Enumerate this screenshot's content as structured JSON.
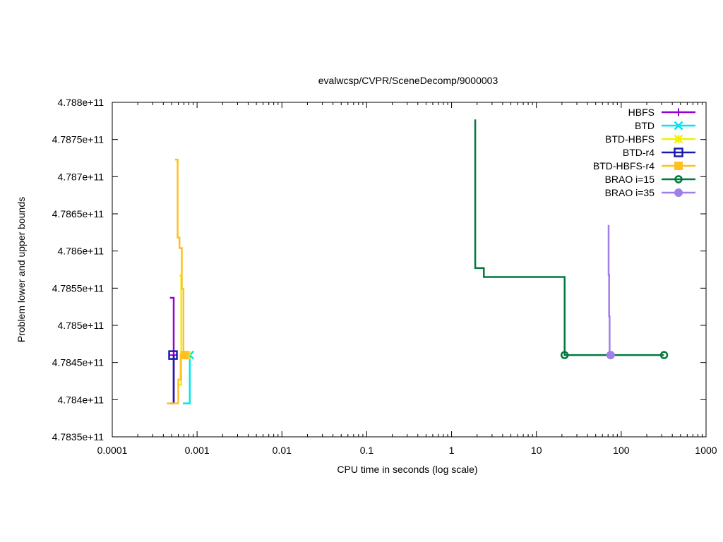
{
  "chart_data": {
    "type": "line",
    "title": "evalwcsp/CVPR/SceneDecomp/9000003",
    "xlabel": "CPU time in seconds (log scale)",
    "ylabel": "Problem lower and upper bounds",
    "x_scale": "log",
    "xlim": [
      0.0001,
      1000
    ],
    "ylim": [
      478350000000,
      478800000000
    ],
    "x_ticks": [
      0.0001,
      0.001,
      0.01,
      0.1,
      1,
      10,
      100,
      1000
    ],
    "x_tick_labels": [
      "0.0001",
      "0.001",
      "0.01",
      "0.1",
      "1",
      "10",
      "100",
      "1000"
    ],
    "y_ticks": [
      478350000000,
      478400000000,
      478450000000,
      478500000000,
      478550000000,
      478600000000,
      478650000000,
      478700000000,
      478750000000,
      478800000000
    ],
    "y_tick_labels": [
      "4.7835e+11",
      "4.784e+11",
      "4.7845e+11",
      "4.785e+11",
      "4.7855e+11",
      "4.786e+11",
      "4.7865e+11",
      "4.787e+11",
      "4.7875e+11",
      "4.788e+11"
    ],
    "grid": false,
    "legend_position": "top-right",
    "series": [
      {
        "name": "HBFS",
        "color": "#9400d3",
        "marker": "plus",
        "upper": [
          [
            0.00048,
            478537000000
          ],
          [
            0.00053,
            478537000000
          ],
          [
            0.00053,
            478460000000
          ]
        ],
        "lower": [
          [
            0.00048,
            478395000000
          ],
          [
            0.00053,
            478395000000
          ],
          [
            0.00053,
            478460000000
          ]
        ],
        "markers": [
          [
            0.00053,
            478460000000
          ]
        ]
      },
      {
        "name": "BTD",
        "color": "#00e5ee",
        "marker": "cross",
        "upper": [
          [
            0.00068,
            478460000000
          ],
          [
            0.00082,
            478460000000
          ]
        ],
        "lower": [
          [
            0.00068,
            478395000000
          ],
          [
            0.00082,
            478395000000
          ],
          [
            0.00082,
            478460000000
          ]
        ],
        "markers": [
          [
            0.00082,
            478460000000
          ]
        ]
      },
      {
        "name": "BTD-HBFS",
        "color": "#f0f000",
        "marker": "star",
        "upper": [
          [
            0.00062,
            478567000000
          ],
          [
            0.00065,
            478567000000
          ],
          [
            0.00065,
            478460000000
          ],
          [
            0.00075,
            478460000000
          ]
        ],
        "lower": [
          [
            0.0006,
            478420000000
          ],
          [
            0.00065,
            478420000000
          ],
          [
            0.00065,
            478460000000
          ],
          [
            0.00075,
            478460000000
          ]
        ],
        "markers": [
          [
            0.00075,
            478460000000
          ]
        ]
      },
      {
        "name": "BTD-r4",
        "color": "#1a1aaa",
        "marker": "square-open",
        "upper": [
          [
            0.00051,
            478460000000
          ]
        ],
        "lower": [
          [
            0.00051,
            478395000000
          ],
          [
            0.00053,
            478395000000
          ],
          [
            0.00053,
            478460000000
          ]
        ],
        "markers": [
          [
            0.00052,
            478460000000
          ]
        ]
      },
      {
        "name": "BTD-HBFS-r4",
        "color": "#ffc020",
        "marker": "square-filled",
        "upper": [
          [
            0.00055,
            478723000000
          ],
          [
            0.00059,
            478723000000
          ],
          [
            0.00059,
            478618000000
          ],
          [
            0.00062,
            478618000000
          ],
          [
            0.00062,
            478604000000
          ],
          [
            0.00066,
            478604000000
          ],
          [
            0.00066,
            478549000000
          ],
          [
            0.00069,
            478549000000
          ],
          [
            0.00069,
            478460000000
          ],
          [
            0.00072,
            478460000000
          ]
        ],
        "lower": [
          [
            0.00044,
            478395000000
          ],
          [
            0.0006,
            478395000000
          ],
          [
            0.0006,
            478427000000
          ],
          [
            0.00064,
            478427000000
          ],
          [
            0.00064,
            478460000000
          ],
          [
            0.00072,
            478460000000
          ]
        ],
        "markers": [
          [
            0.00071,
            478460000000
          ]
        ]
      },
      {
        "name": "BRAO i=15",
        "color": "#007a3d",
        "marker": "circle-open",
        "upper": [
          [
            1.9,
            478777000000
          ],
          [
            1.9,
            478577000000
          ],
          [
            2.4,
            478577000000
          ],
          [
            2.4,
            478565000000
          ],
          [
            21.5,
            478565000000
          ],
          [
            21.5,
            478460000000
          ],
          [
            320,
            478460000000
          ]
        ],
        "lower": [],
        "markers": [
          [
            21.5,
            478460000000
          ],
          [
            320,
            478460000000
          ]
        ]
      },
      {
        "name": "BRAO i=35",
        "color": "#9f7fe8",
        "marker": "circle-filled",
        "upper": [
          [
            71,
            478635000000
          ],
          [
            71,
            478568000000
          ],
          [
            72,
            478568000000
          ],
          [
            72,
            478512000000
          ],
          [
            73,
            478512000000
          ],
          [
            73,
            478460000000
          ]
        ],
        "lower": [],
        "markers": [
          [
            75,
            478460000000
          ]
        ]
      }
    ]
  }
}
